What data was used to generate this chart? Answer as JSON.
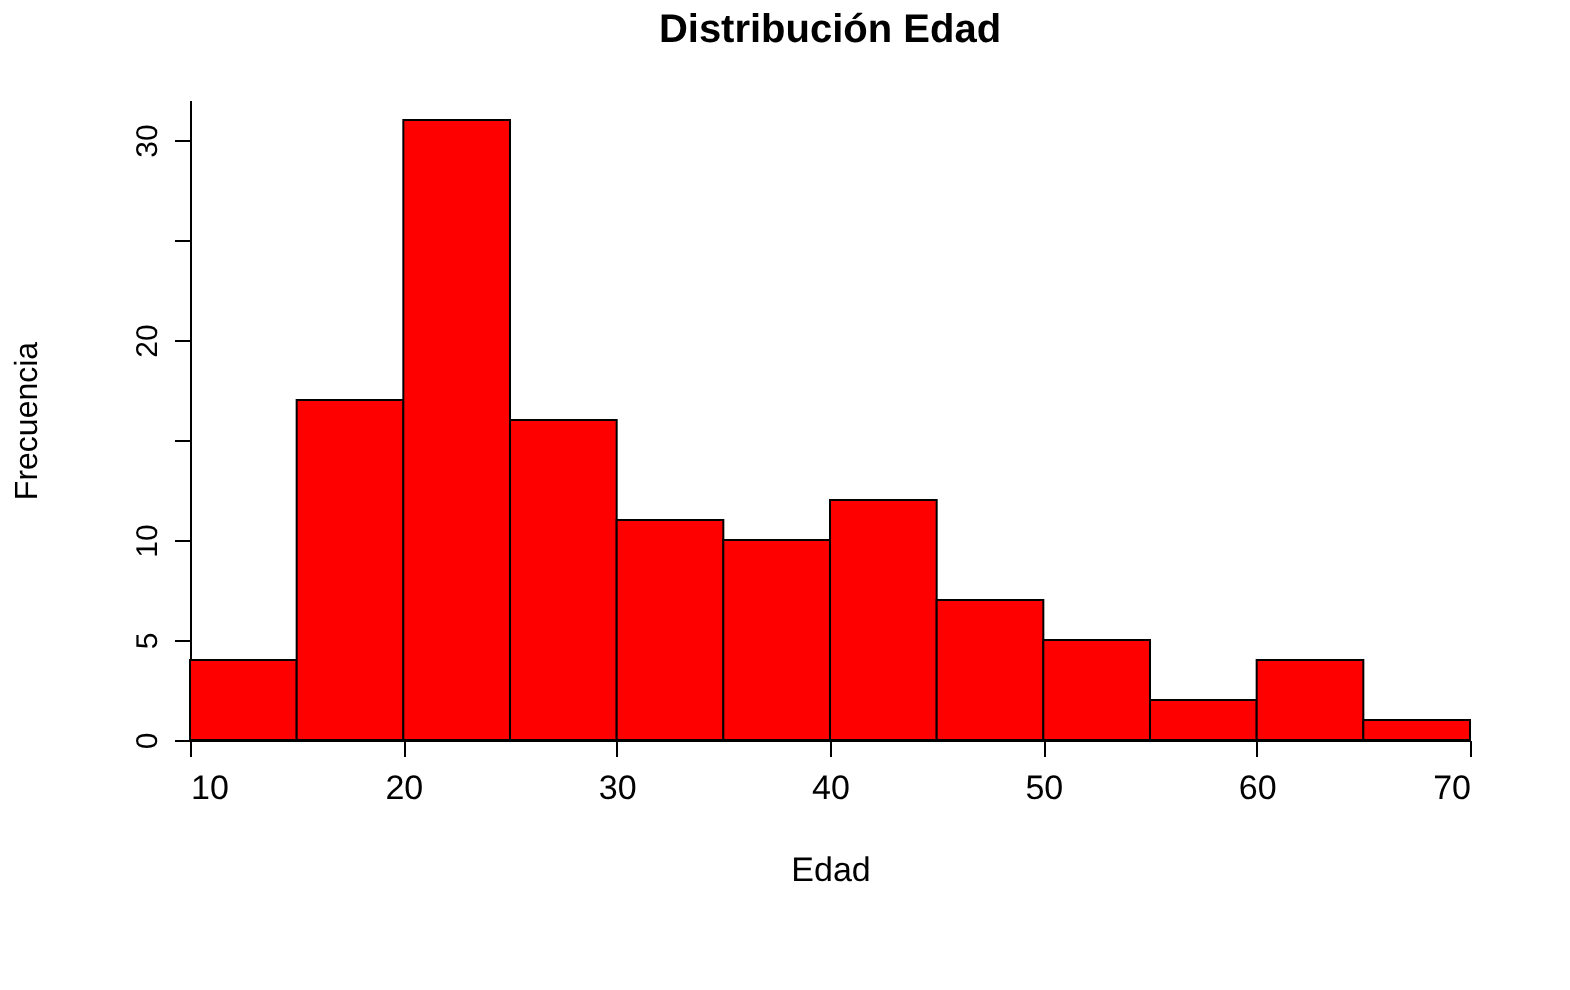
{
  "chart_data": {
    "type": "histogram",
    "title": "Distribución Edad",
    "xlabel": "Edad",
    "ylabel": "Frecuencia",
    "bins": [
      10,
      15,
      20,
      25,
      30,
      35,
      40,
      45,
      50,
      55,
      60,
      65,
      70
    ],
    "values": [
      4,
      17,
      31,
      16,
      11,
      10,
      12,
      7,
      5,
      2,
      4,
      1
    ],
    "color": "#ff0000",
    "xlim": [
      10,
      70
    ],
    "xticks": [
      10,
      20,
      30,
      40,
      50,
      60,
      70
    ],
    "ylim": [
      0,
      32
    ],
    "yticks": [
      0,
      5,
      10,
      {
        "value": 15,
        "label": null
      },
      20,
      {
        "value": 25,
        "label": null
      },
      30
    ],
    "grid": false
  }
}
